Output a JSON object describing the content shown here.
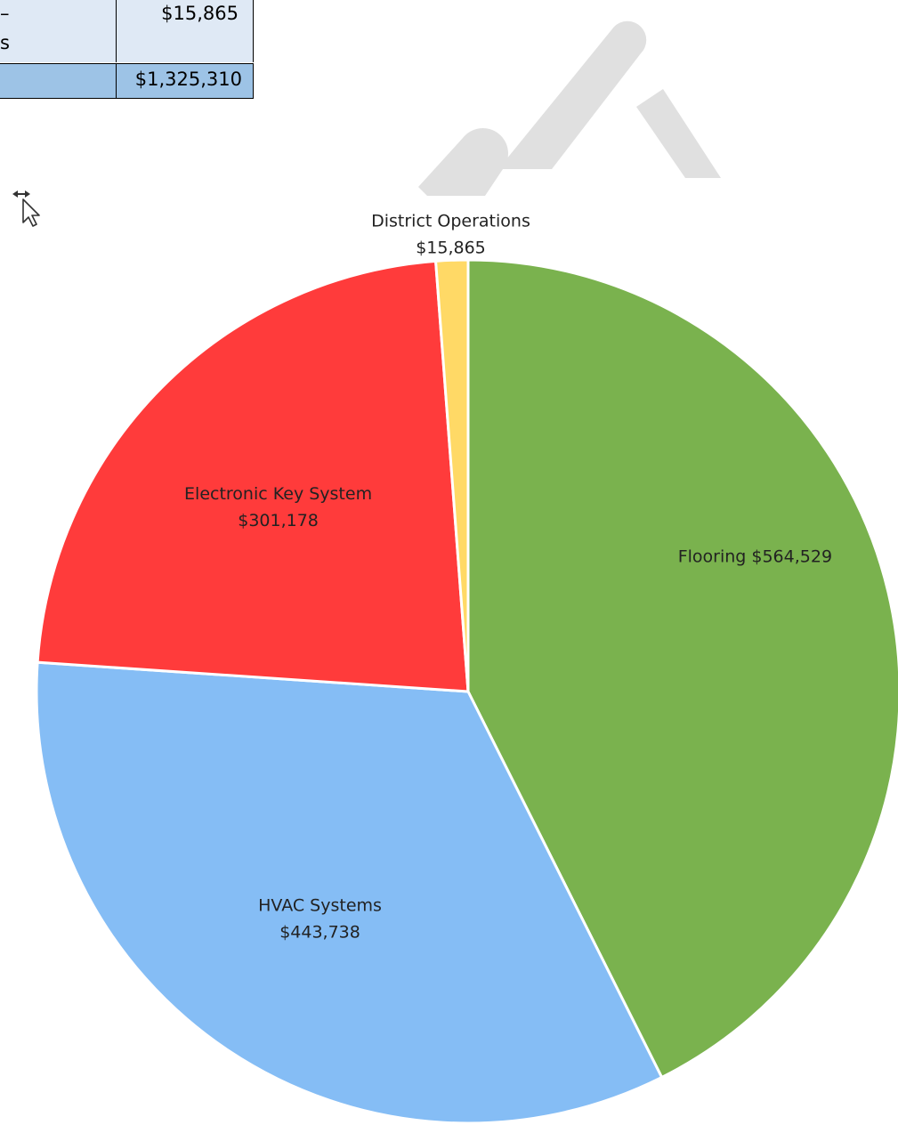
{
  "table": {
    "row1": {
      "label_line1": "–",
      "label_line2": "s",
      "value": "$15,865"
    },
    "row2": {
      "label": "",
      "value": "$1,325,310"
    }
  },
  "colors": {
    "table_row_light": "#dfe9f5",
    "table_row_total": "#9dc3e6",
    "flooring": "#7ab24e",
    "hvac": "#85bdf5",
    "electronic_key": "#ff3b3b",
    "district_ops": "#ffd966",
    "watermark": "#e0e0e0"
  },
  "cursor": {
    "icon": "move-cursor-icon"
  },
  "chart_data": {
    "type": "pie",
    "title": "",
    "slices": [
      {
        "label": "Flooring",
        "value": 564529,
        "value_label": "$564,529",
        "color": "#7ab24e"
      },
      {
        "label": "HVAC Systems",
        "value": 443738,
        "value_label": "$443,738",
        "color": "#85bdf5"
      },
      {
        "label": "Electronic Key System",
        "value": 301178,
        "value_label": "$301,178",
        "color": "#ff3b3b"
      },
      {
        "label": "District Operations",
        "value": 15865,
        "value_label": "$15,865",
        "color": "#ffd966"
      }
    ],
    "start_angle_deg": 0,
    "direction": "clockwise",
    "legend": "none",
    "labels": "on-slice"
  }
}
